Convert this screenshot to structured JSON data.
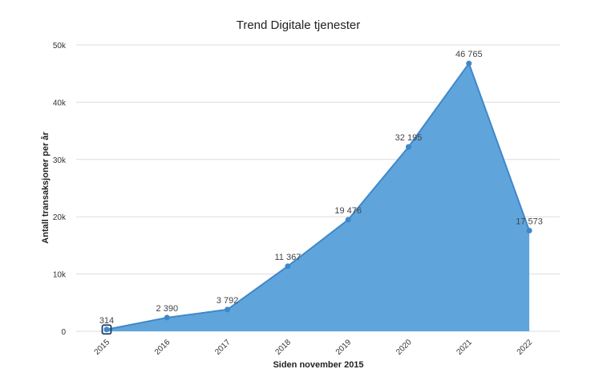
{
  "chart_data": {
    "type": "area",
    "title": "Trend Digitale tjenester",
    "xlabel": "Siden november 2015",
    "ylabel": "Antall transaksjoner per år",
    "categories": [
      "2015",
      "2016",
      "2017",
      "2018",
      "2019",
      "2020",
      "2021",
      "2022"
    ],
    "values": [
      314,
      2390,
      3792,
      11367,
      19476,
      32195,
      46765,
      17573
    ],
    "data_labels": [
      "314",
      "2 390",
      "3 792",
      "11 367",
      "19 476",
      "32 195",
      "46 765",
      "17 573"
    ],
    "y_ticks": [
      0,
      10000,
      20000,
      30000,
      40000,
      50000
    ],
    "y_tick_labels": [
      "0",
      "10k",
      "20k",
      "30k",
      "40k",
      "50k"
    ],
    "ylim": [
      0,
      50000
    ],
    "grid": true,
    "legend": "none",
    "colors": {
      "fill": "#5fa5dc",
      "line": "#3f88c8",
      "point": "#3f88c8",
      "highlight_border": "#1f3f66"
    }
  }
}
